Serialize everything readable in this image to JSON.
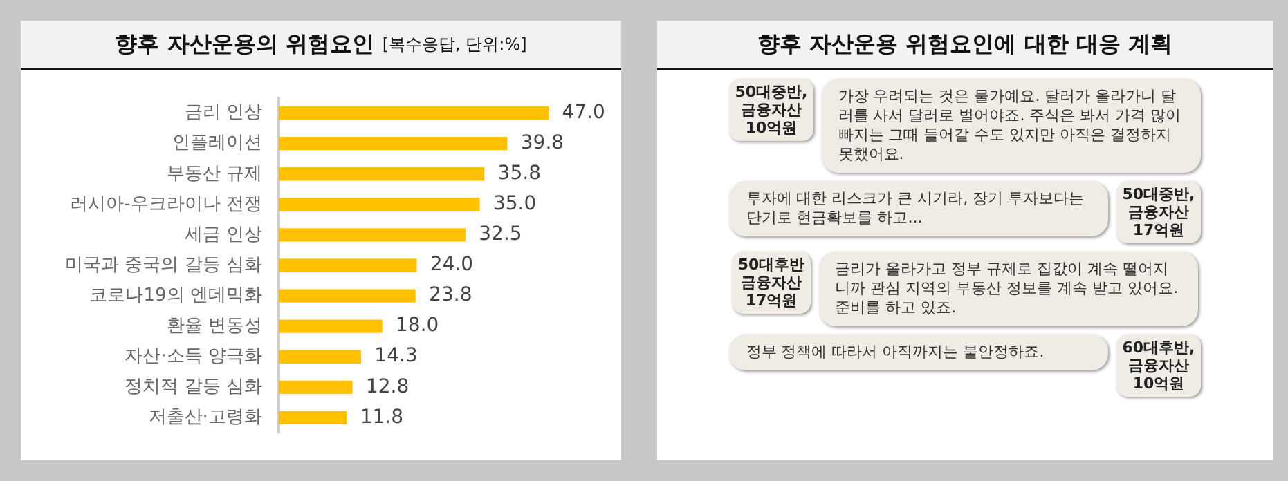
{
  "chart_data": [
    {
      "type": "bar",
      "title": "향후 자산운용의 위험요인",
      "subtitle": "[복수응답, 단위:%]",
      "orientation": "horizontal",
      "color": "#ffc000",
      "categories": [
        "금리 인상",
        "인플레이션",
        "부동산 규제",
        "러시아-우크라이나 전쟁",
        "세금 인상",
        "미국과 중국의 갈등 심화",
        "코로나19의 엔데믹화",
        "환율 변동성",
        "자산·소득 양극화",
        "정치적 갈등 심화",
        "저출산·고령화"
      ],
      "values": [
        47.0,
        39.8,
        35.8,
        35.0,
        32.5,
        24.0,
        23.8,
        18.0,
        14.3,
        12.8,
        11.8
      ],
      "value_labels": [
        "47.0",
        "39.8",
        "35.8",
        "35.0",
        "32.5",
        "24.0",
        "23.8",
        "18.0",
        "14.3",
        "12.8",
        "11.8"
      ],
      "legend": false,
      "tick_labels": "y"
    },
    {
      "type": "other",
      "title": "향후 자산운용 위험요인에 대한 대응 계획",
      "annotations": [
        "50대중반,\n금융자산\n10억원",
        "가장 우려되는 것은 물가예요. 달러가 올라가니 달러를 사서 달러로 벌어야죠. 주식은 봐서 가격 많이 빠지는 그때 들어갈 수도 있지만 아직은 결정하지 못했어요.",
        "투자에 대한 리스크가 큰 시기라, 장기 투자보다는 단기로 현금확보를 하고...",
        "50대중반,\n금융자산\n17억원",
        "50대후반\n금융자산\n17억원",
        "금리가 올라가고 정부 규제로 집값이 계속 떨어지니까 관심 지역의 부동산 정보를 계속 받고 있어요. 준비를 하고 있죠.",
        "정부 정책에 따라서 아직까지는 불안정하죠.",
        "60대후반,\n금융자산\n10억원"
      ]
    }
  ]
}
